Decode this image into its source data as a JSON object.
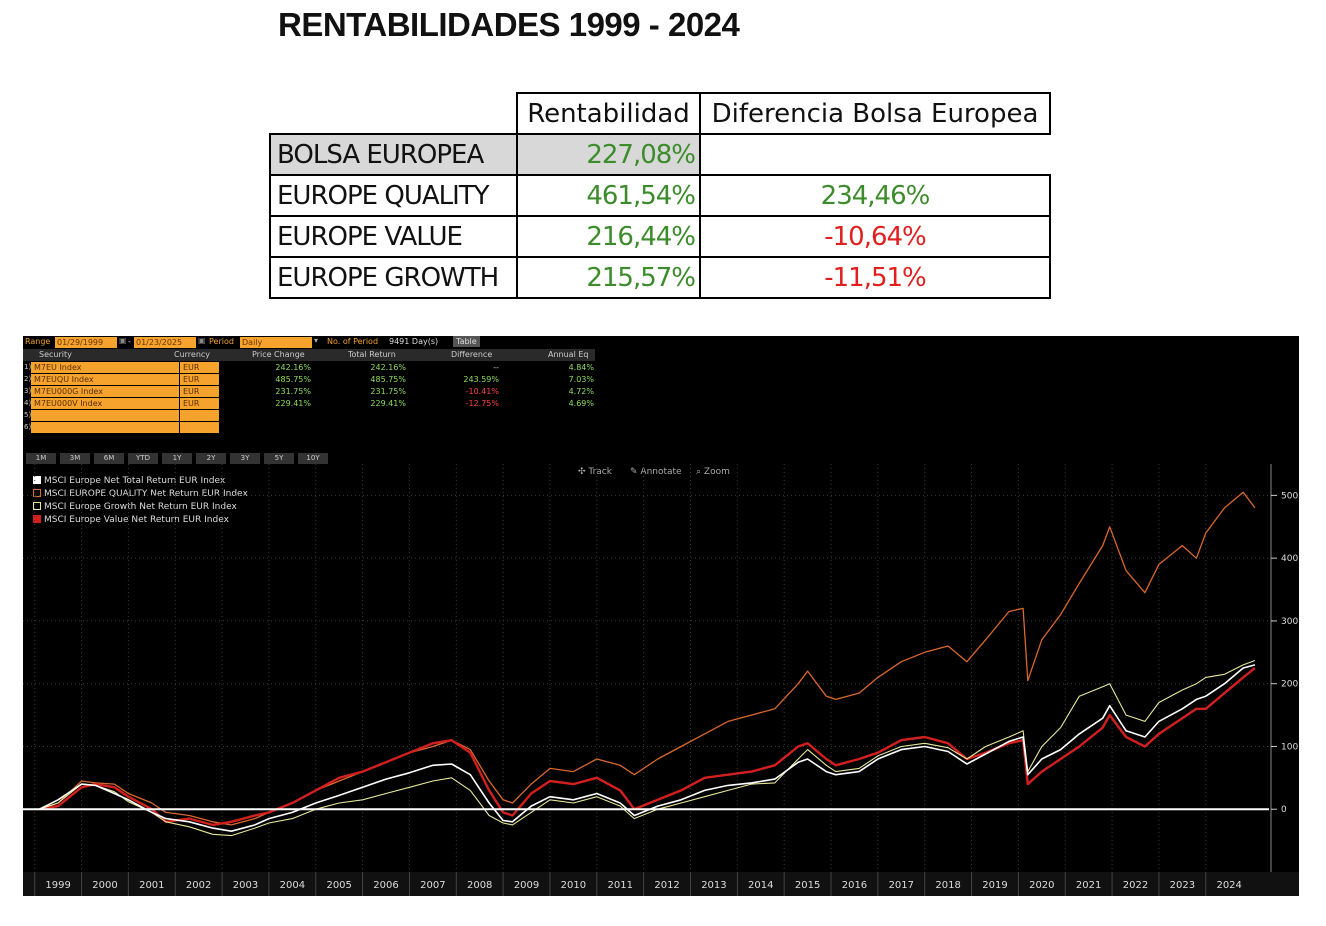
{
  "title": "RENTABILIDADES 1999 - 2024",
  "summary_table": {
    "headers": [
      "Rentabilidad",
      "Diferencia Bolsa Europea"
    ],
    "rows": [
      {
        "name": "BOLSA EUROPEA",
        "return": "227,08%",
        "diff": ""
      },
      {
        "name": "EUROPE QUALITY",
        "return": "461,54%",
        "diff": "234,46%"
      },
      {
        "name": "EUROPE VALUE",
        "return": "216,44%",
        "diff": "-10,64%"
      },
      {
        "name": "EUROPE GROWTH",
        "return": "215,57%",
        "diff": "-11,51%"
      }
    ]
  },
  "terminal": {
    "range_label": "Range",
    "start_date": "01/29/1999",
    "end_date": "01/23/2025",
    "period_label": "Period",
    "period_value": "Daily",
    "num_period_label": "No. of Period",
    "num_period_value": "9491 Day(s)",
    "table_button": "Table",
    "columns": [
      "Security",
      "Currency",
      "Price Change",
      "Total Return",
      "Difference",
      "Annual Eq"
    ],
    "rows": [
      {
        "num": "1)",
        "security": "M7EU Index",
        "currency": "EUR",
        "price_change": "242.16%",
        "total_return": "242.16%",
        "difference": "--",
        "annual_eq": "4.84%"
      },
      {
        "num": "2)",
        "security": "M7EUQU Index",
        "currency": "EUR",
        "price_change": "485.75%",
        "total_return": "485.75%",
        "difference": "243.59%",
        "annual_eq": "7.03%"
      },
      {
        "num": "3)",
        "security": "M7EU000G Index",
        "currency": "EUR",
        "price_change": "231.75%",
        "total_return": "231.75%",
        "difference": "-10.41%",
        "annual_eq": "4.72%"
      },
      {
        "num": "4)",
        "security": "M7EU000V Index",
        "currency": "EUR",
        "price_change": "229.41%",
        "total_return": "229.41%",
        "difference": "-12.75%",
        "annual_eq": "4.69%"
      },
      {
        "num": "5)",
        "security": "",
        "currency": "",
        "price_change": "",
        "total_return": "",
        "difference": "",
        "annual_eq": ""
      },
      {
        "num": "6)",
        "security": "",
        "currency": "",
        "price_change": "",
        "total_return": "",
        "difference": "",
        "annual_eq": ""
      }
    ],
    "range_buttons": [
      "1M",
      "3M",
      "6M",
      "YTD",
      "1Y",
      "2Y",
      "3Y",
      "5Y",
      "10Y"
    ],
    "tools": [
      "Track",
      "Annotate",
      "Zoom"
    ]
  },
  "colors": {
    "positive": "#3c8c2b",
    "negative": "#e0201f",
    "bloomberg_orange": "#f6a32d",
    "series_europe": "#ffffff",
    "series_quality": "#d9682c",
    "series_growth": "#e8e89a",
    "series_value": "#d41f1f"
  },
  "chart_data": {
    "type": "line",
    "title": "",
    "xlabel": "",
    "ylabel": "",
    "x_ticks": [
      "1999",
      "2000",
      "2001",
      "2002",
      "2003",
      "2004",
      "2005",
      "2006",
      "2007",
      "2008",
      "2009",
      "2010",
      "2011",
      "2012",
      "2013",
      "2014",
      "2015",
      "2016",
      "2017",
      "2018",
      "2019",
      "2020",
      "2021",
      "2022",
      "2023",
      "2024"
    ],
    "y_ticks": [
      0,
      100,
      200,
      300,
      400,
      500
    ],
    "ylim": [
      -100,
      550
    ],
    "legend_position": "top-left",
    "x": [
      1999.1,
      1999.5,
      2000.0,
      2000.3,
      2000.7,
      2001.0,
      2001.5,
      2001.8,
      2002.3,
      2002.8,
      2003.2,
      2003.7,
      2004.0,
      2004.5,
      2005.0,
      2005.5,
      2006.0,
      2006.5,
      2007.0,
      2007.5,
      2007.9,
      2008.3,
      2008.7,
      2009.0,
      2009.2,
      2009.6,
      2010.0,
      2010.5,
      2011.0,
      2011.5,
      2011.8,
      2012.3,
      2012.8,
      2013.3,
      2013.8,
      2014.3,
      2014.8,
      2015.3,
      2015.5,
      2015.9,
      2016.1,
      2016.6,
      2017.0,
      2017.5,
      2018.0,
      2018.5,
      2018.9,
      2019.3,
      2019.8,
      2020.1,
      2020.2,
      2020.5,
      2020.9,
      2021.3,
      2021.8,
      2021.95,
      2022.3,
      2022.7,
      2023.0,
      2023.5,
      2023.8,
      2024.0,
      2024.4,
      2024.8,
      2025.05
    ],
    "series": [
      {
        "name": "MSCI Europe Net Total Return EUR Index",
        "values": [
          0,
          15,
          40,
          38,
          25,
          15,
          -5,
          -15,
          -20,
          -30,
          -35,
          -25,
          -15,
          -5,
          10,
          22,
          35,
          48,
          58,
          70,
          72,
          55,
          10,
          -18,
          -20,
          5,
          20,
          15,
          25,
          10,
          -10,
          5,
          15,
          30,
          38,
          42,
          48,
          75,
          80,
          60,
          55,
          60,
          80,
          95,
          100,
          92,
          72,
          88,
          108,
          115,
          55,
          80,
          95,
          120,
          145,
          165,
          125,
          115,
          140,
          160,
          175,
          180,
          200,
          225,
          230
        ]
      },
      {
        "name": "MSCI EUROPE QUALITY Net Return EUR Index",
        "values": [
          0,
          10,
          45,
          42,
          40,
          25,
          10,
          -5,
          -10,
          -20,
          -25,
          -15,
          -5,
          10,
          30,
          45,
          60,
          75,
          90,
          100,
          110,
          95,
          45,
          15,
          10,
          40,
          65,
          60,
          80,
          70,
          55,
          80,
          100,
          120,
          140,
          150,
          160,
          200,
          220,
          180,
          175,
          185,
          210,
          235,
          250,
          260,
          235,
          270,
          315,
          320,
          205,
          270,
          310,
          360,
          420,
          450,
          380,
          345,
          390,
          420,
          400,
          440,
          480,
          505,
          480
        ]
      },
      {
        "name": "MSCI Europe Growth Net Return EUR Index",
        "values": [
          0,
          10,
          40,
          38,
          28,
          12,
          -5,
          -20,
          -28,
          -40,
          -42,
          -30,
          -22,
          -15,
          0,
          10,
          15,
          25,
          35,
          45,
          50,
          30,
          -10,
          -22,
          -25,
          -5,
          15,
          10,
          20,
          5,
          -15,
          0,
          10,
          20,
          30,
          40,
          42,
          80,
          95,
          70,
          60,
          65,
          85,
          100,
          105,
          98,
          80,
          100,
          115,
          125,
          60,
          100,
          130,
          180,
          195,
          200,
          150,
          140,
          170,
          190,
          200,
          210,
          215,
          230,
          237
        ]
      },
      {
        "name": "MSCI Europe Value Net Return EUR Index",
        "values": [
          0,
          5,
          35,
          40,
          35,
          20,
          0,
          -20,
          -15,
          -25,
          -20,
          -10,
          -5,
          10,
          30,
          50,
          60,
          75,
          90,
          105,
          110,
          90,
          30,
          -5,
          -10,
          25,
          45,
          40,
          50,
          30,
          0,
          15,
          30,
          50,
          55,
          60,
          70,
          100,
          105,
          80,
          70,
          80,
          90,
          110,
          115,
          105,
          80,
          90,
          105,
          110,
          40,
          60,
          80,
          100,
          130,
          150,
          115,
          100,
          120,
          145,
          160,
          160,
          185,
          210,
          225
        ]
      }
    ]
  }
}
